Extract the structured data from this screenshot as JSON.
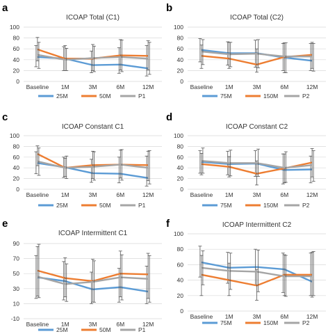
{
  "chart_data": [
    {
      "panel": "a",
      "type": "line",
      "title": "ICOAP Total (C1)",
      "categories": [
        "Baseline",
        "1M",
        "3M",
        "6M",
        "12M"
      ],
      "ylim": [
        0,
        100
      ],
      "yticks": [
        0,
        20,
        40,
        60,
        80,
        100
      ],
      "grid": true,
      "legend": "bottom",
      "series": [
        {
          "name": "25M",
          "color": "#5B9BD5",
          "values": [
            45,
            42,
            30,
            31,
            24
          ],
          "err_low": [
            27,
            20,
            16,
            15,
            10
          ],
          "err_high": [
            66,
            64,
            56,
            62,
            66
          ]
        },
        {
          "name": "50M",
          "color": "#ED7D31",
          "values": [
            59,
            42,
            42,
            48,
            47
          ],
          "err_low": [
            38,
            20,
            20,
            21,
            21
          ],
          "err_high": [
            81,
            66,
            68,
            77,
            75
          ]
        },
        {
          "name": "P1",
          "color": "#A5A5A5",
          "values": [
            49,
            40,
            43,
            45,
            42
          ],
          "err_low": [
            24,
            20,
            18,
            18,
            13
          ],
          "err_high": [
            72,
            61,
            65,
            76,
            72
          ]
        }
      ]
    },
    {
      "panel": "b",
      "type": "line",
      "title": "ICOAP Total (C2)",
      "categories": [
        "Baseline",
        "1M",
        "3M",
        "6M",
        "12M"
      ],
      "ylim": [
        0,
        100
      ],
      "yticks": [
        0,
        20,
        40,
        60,
        80,
        100
      ],
      "grid": true,
      "legend": "bottom",
      "series": [
        {
          "name": "75M",
          "color": "#5B9BD5",
          "values": [
            58,
            52,
            52,
            44,
            38
          ],
          "err_low": [
            36,
            30,
            26,
            20,
            20
          ],
          "err_high": [
            79,
            73,
            76,
            70,
            70
          ]
        },
        {
          "name": "150M",
          "color": "#ED7D31",
          "values": [
            47,
            42,
            31,
            45,
            49
          ],
          "err_low": [
            24,
            24,
            17,
            16,
            24
          ],
          "err_high": [
            67,
            72,
            60,
            71,
            72
          ]
        },
        {
          "name": "P2",
          "color": "#A5A5A5",
          "values": [
            55,
            50,
            51,
            46,
            46
          ],
          "err_low": [
            31,
            27,
            25,
            16,
            19
          ],
          "err_high": [
            77,
            72,
            77,
            71,
            70
          ]
        }
      ]
    },
    {
      "panel": "c",
      "type": "line",
      "title": "ICOAP Constant C1",
      "categories": [
        "Baseline",
        "1M",
        "3M",
        "6M",
        "12M"
      ],
      "ylim": [
        0,
        100
      ],
      "yticks": [
        0,
        20,
        40,
        60,
        80,
        100
      ],
      "grid": true,
      "legend": "bottom",
      "series": [
        {
          "name": "25M",
          "color": "#5B9BD5",
          "values": [
            49,
            41,
            30,
            29,
            21
          ],
          "err_low": [
            29,
            22,
            13,
            12,
            6
          ],
          "err_high": [
            70,
            60,
            56,
            60,
            62
          ]
        },
        {
          "name": "50M",
          "color": "#ED7D31",
          "values": [
            66,
            40,
            45,
            46,
            45
          ],
          "err_low": [
            44,
            24,
            20,
            21,
            16
          ],
          "err_high": [
            81,
            58,
            71,
            73,
            71
          ]
        },
        {
          "name": "P1",
          "color": "#A5A5A5",
          "values": [
            52,
            40,
            42,
            46,
            40
          ],
          "err_low": [
            26,
            20,
            17,
            17,
            10
          ],
          "err_high": [
            77,
            62,
            70,
            74,
            72
          ]
        }
      ]
    },
    {
      "panel": "d",
      "type": "line",
      "title": "ICOAP Constant C2",
      "categories": [
        "Baseline",
        "1M",
        "3M",
        "6M",
        "12M"
      ],
      "ylim": [
        0,
        100
      ],
      "yticks": [
        0,
        20,
        40,
        60,
        80,
        100
      ],
      "grid": true,
      "legend": "bottom",
      "series": [
        {
          "name": "75M",
          "color": "#5B9BD5",
          "values": [
            51,
            47,
            48,
            36,
            37
          ],
          "err_low": [
            30,
            27,
            24,
            10,
            12
          ],
          "err_high": [
            72,
            71,
            72,
            66,
            62
          ]
        },
        {
          "name": "150M",
          "color": "#ED7D31",
          "values": [
            47,
            42,
            29,
            39,
            50
          ],
          "err_low": [
            27,
            23,
            8,
            12,
            23
          ],
          "err_high": [
            67,
            61,
            53,
            66,
            76
          ]
        },
        {
          "name": "P2",
          "color": "#A5A5A5",
          "values": [
            53,
            49,
            49,
            40,
            45
          ],
          "err_low": [
            30,
            25,
            24,
            13,
            15
          ],
          "err_high": [
            77,
            73,
            75,
            70,
            72
          ]
        }
      ]
    },
    {
      "panel": "e",
      "type": "line",
      "title": "ICOAP Intermittent C1",
      "categories": [
        "Baseline",
        "1M",
        "3M",
        "6M",
        "12M"
      ],
      "ylim": [
        -10,
        90
      ],
      "yticks": [
        -10,
        10,
        30,
        50,
        70,
        90
      ],
      "grid": true,
      "legend": "bottom",
      "series": [
        {
          "name": "25M",
          "color": "#5B9BD5",
          "values": [
            45,
            40,
            29,
            32,
            26
          ],
          "err_low": [
            17,
            15,
            10,
            12,
            10
          ],
          "err_high": [
            74,
            66,
            52,
            57,
            60
          ]
        },
        {
          "name": "50M",
          "color": "#ED7D31",
          "values": [
            54,
            44,
            40,
            50,
            49
          ],
          "err_low": [
            20,
            19,
            12,
            19,
            17
          ],
          "err_high": [
            86,
            71,
            69,
            80,
            77
          ]
        },
        {
          "name": "P1",
          "color": "#A5A5A5",
          "values": [
            46,
            36,
            39,
            45,
            43
          ],
          "err_low": [
            18,
            13,
            12,
            15,
            12
          ],
          "err_high": [
            89,
            63,
            67,
            75,
            74
          ]
        }
      ]
    },
    {
      "panel": "f",
      "type": "line",
      "title": "ICOAP Intermittent C2",
      "categories": [
        "Baseline",
        "1M",
        "3M",
        "6M",
        "12M"
      ],
      "ylim": [
        0,
        100
      ],
      "yticks": [
        0,
        20,
        40,
        60,
        80,
        100
      ],
      "grid": true,
      "legend": "bottom",
      "series": [
        {
          "name": "75M",
          "color": "#5B9BD5",
          "values": [
            63,
            56,
            57,
            54,
            38
          ],
          "err_low": [
            44,
            36,
            34,
            24,
            20
          ],
          "err_high": [
            84,
            76,
            80,
            75,
            75
          ]
        },
        {
          "name": "150M",
          "color": "#ED7D31",
          "values": [
            47,
            40,
            33,
            47,
            47
          ],
          "err_low": [
            20,
            20,
            14,
            20,
            18
          ],
          "err_high": [
            72,
            62,
            54,
            73,
            76
          ]
        },
        {
          "name": "P2",
          "color": "#A5A5A5",
          "values": [
            56,
            52,
            51,
            45,
            45
          ],
          "err_low": [
            34,
            28,
            25,
            19,
            20
          ],
          "err_high": [
            78,
            75,
            79,
            72,
            77
          ]
        }
      ]
    }
  ]
}
